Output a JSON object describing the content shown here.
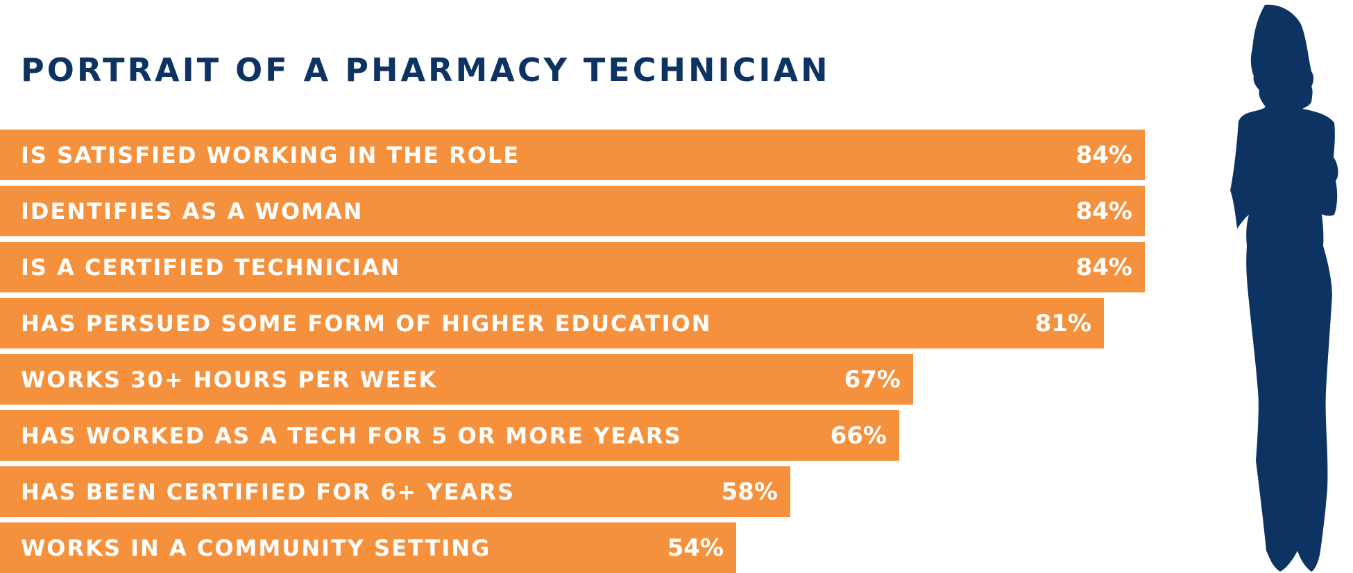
{
  "colors": {
    "bar": "#F5913C",
    "text_on_bar": "#FFFFFF",
    "title": "#0D3362",
    "silhouette": "#0D3362"
  },
  "icons": {
    "figure": "woman-silhouette-icon"
  },
  "chart_data": {
    "type": "bar",
    "orientation": "horizontal",
    "title": "PORTRAIT OF A PHARMACY TECHNICIAN",
    "xlabel": "",
    "ylabel": "",
    "xlim": [
      0,
      100
    ],
    "grid": false,
    "legend": "none",
    "categories": [
      "IS SATISFIED WORKING IN THE ROLE",
      "IDENTIFIES AS A WOMAN",
      "IS A CERTIFIED TECHNICIAN",
      "HAS PERSUED SOME FORM OF HIGHER EDUCATION",
      "WORKS 30+ HOURS PER WEEK",
      "HAS WORKED AS A TECH FOR 5 OR MORE YEARS",
      "HAS BEEN CERTIFIED FOR 6+ YEARS",
      "WORKS IN A COMMUNITY SETTING"
    ],
    "values": [
      84,
      84,
      84,
      81,
      67,
      66,
      58,
      54
    ],
    "value_labels": [
      "84%",
      "84%",
      "84%",
      "81%",
      "67%",
      "66%",
      "58%",
      "54%"
    ]
  }
}
